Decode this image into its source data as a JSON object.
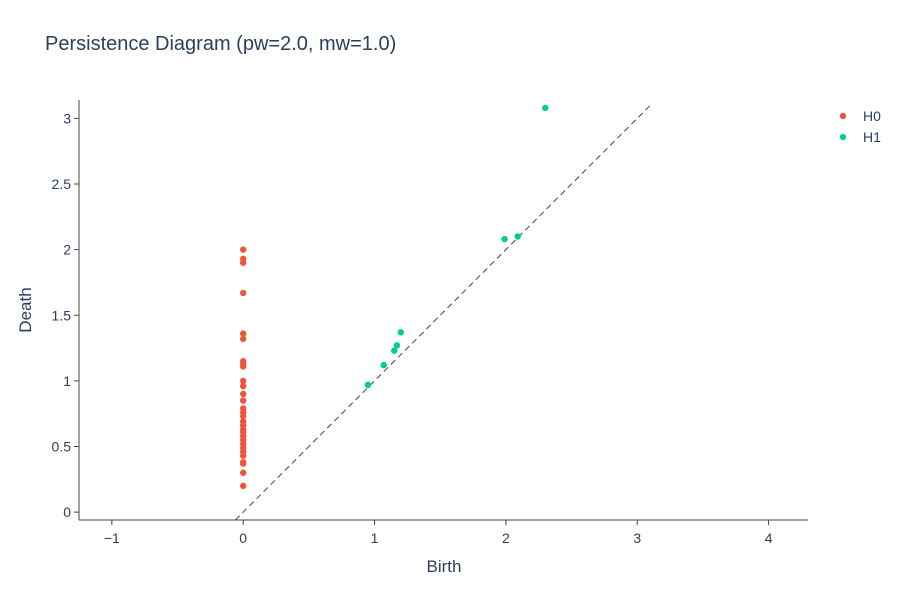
{
  "chart_data": {
    "type": "scatter",
    "title": "Persistence Diagram (pw=2.0, mw=1.0)",
    "xlabel": "Birth",
    "ylabel": "Death",
    "xlim": [
      -1.25,
      4.3
    ],
    "ylim": [
      -0.06,
      3.14
    ],
    "xticks": [
      -1,
      0,
      1,
      2,
      3,
      4
    ],
    "xtick_labels": [
      "−1",
      "0",
      "1",
      "2",
      "3",
      "4"
    ],
    "yticks": [
      0,
      0.5,
      1,
      1.5,
      2,
      2.5,
      3
    ],
    "ytick_labels": [
      "0",
      "0.5",
      "1",
      "1.5",
      "2",
      "2.5",
      "3"
    ],
    "grid": false,
    "legend_position": "top-right",
    "diagonal": {
      "style": "dashed",
      "color": "#444444",
      "from": [
        -0.06,
        -0.06
      ],
      "to": [
        3.1,
        3.1
      ]
    },
    "series": [
      {
        "name": "H0",
        "color": "#EF553B",
        "points": [
          [
            0,
            0.2
          ],
          [
            0,
            0.3
          ],
          [
            0,
            0.37
          ],
          [
            0,
            0.38
          ],
          [
            0,
            0.43
          ],
          [
            0,
            0.46
          ],
          [
            0,
            0.49
          ],
          [
            0,
            0.52
          ],
          [
            0,
            0.55
          ],
          [
            0,
            0.58
          ],
          [
            0,
            0.61
          ],
          [
            0,
            0.63
          ],
          [
            0,
            0.66
          ],
          [
            0,
            0.69
          ],
          [
            0,
            0.73
          ],
          [
            0,
            0.76
          ],
          [
            0,
            0.79
          ],
          [
            0,
            0.85
          ],
          [
            0,
            0.9
          ],
          [
            0,
            0.96
          ],
          [
            0,
            1.0
          ],
          [
            0,
            1.11
          ],
          [
            0,
            1.13
          ],
          [
            0,
            1.15
          ],
          [
            0,
            1.32
          ],
          [
            0,
            1.36
          ],
          [
            0,
            1.67
          ],
          [
            0,
            1.9
          ],
          [
            0,
            1.93
          ],
          [
            0,
            2.0
          ]
        ]
      },
      {
        "name": "H1",
        "color": "#00CC96",
        "points": [
          [
            0.95,
            0.97
          ],
          [
            1.07,
            1.12
          ],
          [
            1.15,
            1.23
          ],
          [
            1.17,
            1.27
          ],
          [
            1.2,
            1.37
          ],
          [
            1.99,
            2.08
          ],
          [
            2.09,
            2.1
          ],
          [
            2.3,
            3.08
          ]
        ]
      }
    ]
  }
}
